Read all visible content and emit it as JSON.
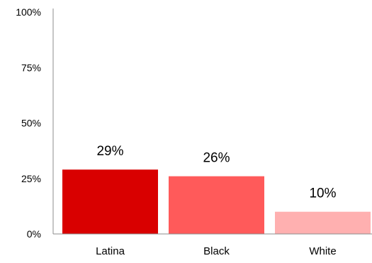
{
  "chart_data": {
    "type": "bar",
    "categories": [
      "Latina",
      "Black",
      "White"
    ],
    "values": [
      29,
      26,
      10
    ],
    "value_labels": [
      "29%",
      "26%",
      "10%"
    ],
    "colors": [
      "#d90000",
      "#ff5a5a",
      "#ffb0b0"
    ],
    "ylim": [
      0,
      100
    ],
    "y_ticks": [
      0,
      25,
      50,
      75,
      100
    ],
    "y_tick_labels": [
      "0%",
      "25%",
      "50%",
      "75%",
      "100%"
    ],
    "grid": false,
    "legend": "none",
    "title": "",
    "xlabel": "",
    "ylabel": ""
  }
}
